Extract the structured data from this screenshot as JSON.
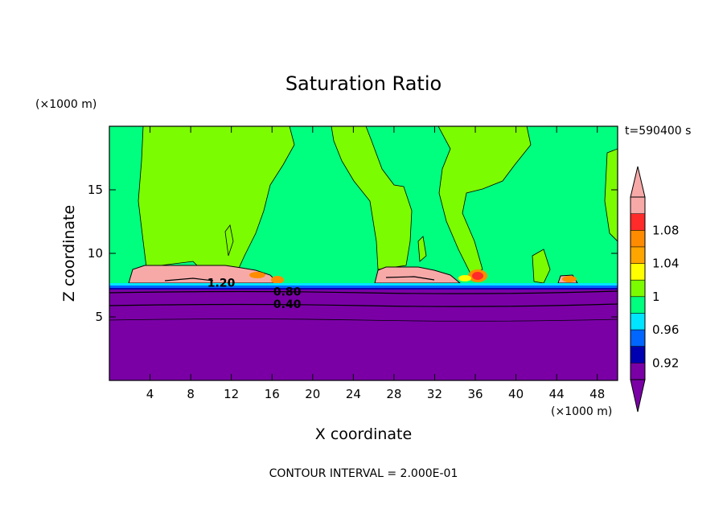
{
  "chart_data": {
    "type": "contour",
    "title": "Saturation Ratio",
    "xlabel": "X coordinate",
    "ylabel": "Z coordinate",
    "x_unit": "(×1000 m)",
    "y_unit": "(×1000 m)",
    "time_label": "t=590400 s",
    "xlim": [
      0,
      50
    ],
    "ylim": [
      0,
      20
    ],
    "x_ticks": [
      4,
      8,
      12,
      16,
      20,
      24,
      28,
      32,
      36,
      40,
      44,
      48
    ],
    "y_ticks": [
      5,
      10,
      15
    ],
    "footer": "CONTOUR INTERVAL = 2.000E-01",
    "contour_labels": [
      {
        "text": "1.20",
        "x": 11,
        "z": 7.7
      },
      {
        "text": "0.80",
        "x": 17.5,
        "z": 7.0
      },
      {
        "text": "0.40",
        "x": 17.5,
        "z": 6.0
      }
    ],
    "colorbar": {
      "levels": [
        "1.08",
        "1.04",
        "1",
        "0.96",
        "0.92"
      ],
      "colors": [
        "#f7a9a8",
        "#ff2a2a",
        "#ff8c00",
        "#ffa500",
        "#ffff00",
        "#7cfc00",
        "#00ff7f",
        "#00e5ff",
        "#0066ff",
        "#0000b0",
        "#7a00a6"
      ],
      "over_color": "#f7a9a8",
      "under_color": "#7a00a6"
    }
  }
}
